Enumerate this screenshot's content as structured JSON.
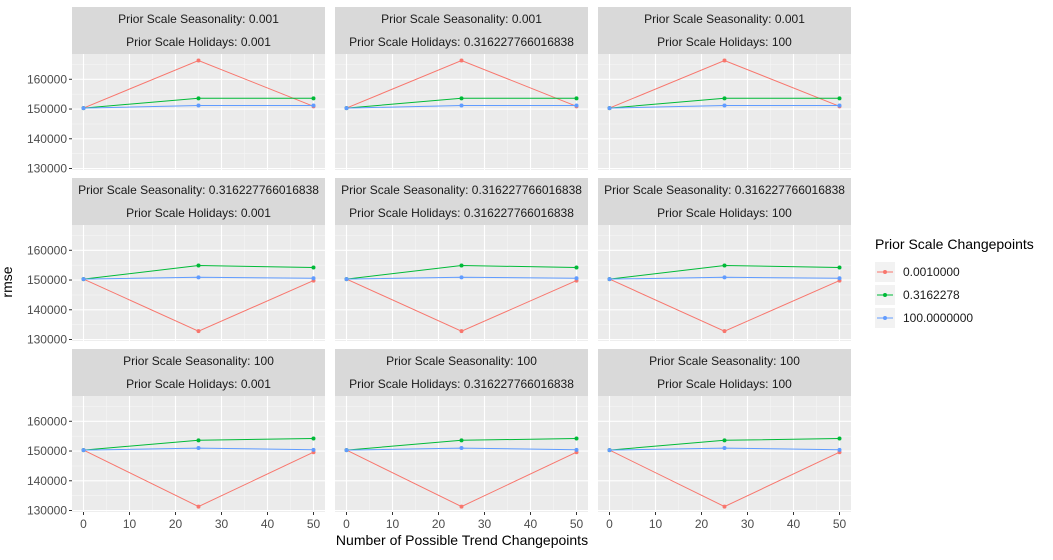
{
  "chart_data": {
    "type": "line",
    "facet_layout": "3x3 grid, rows = Prior Scale Seasonality, columns = Prior Scale Holidays",
    "xlabel": "Number of Possible Trend Changepoints",
    "ylabel": "rmse",
    "x_ticks": [
      "0",
      "10",
      "20",
      "30",
      "40",
      "50"
    ],
    "y_ticks": [
      "130000",
      "140000",
      "150000",
      "160000"
    ],
    "xlim": [
      -2.5,
      52.5
    ],
    "ylim": [
      129500,
      168500
    ],
    "grid": true,
    "legend": {
      "title": "Prior Scale Changepoints",
      "placement": "right",
      "entries": [
        {
          "label": "0.0010000",
          "color": "#F8766D"
        },
        {
          "label": "0.3162278",
          "color": "#00BA38"
        },
        {
          "label": "100.0000000",
          "color": "#619CFF"
        }
      ]
    },
    "x": [
      0,
      25,
      50
    ],
    "panels": [
      {
        "strip_top": "Prior Scale Seasonality: 0.001",
        "strip_bottom": "Prior Scale Holidays: 0.001",
        "series": [
          {
            "values": [
              150300,
              166300,
              150900
            ]
          },
          {
            "values": [
              150300,
              153600,
              153600
            ]
          },
          {
            "values": [
              150300,
              151200,
              151200
            ]
          }
        ]
      },
      {
        "strip_top": "Prior Scale Seasonality: 0.001",
        "strip_bottom": "Prior Scale Holidays: 0.316227766016838",
        "series": [
          {
            "values": [
              150300,
              166300,
              150900
            ]
          },
          {
            "values": [
              150300,
              153600,
              153600
            ]
          },
          {
            "values": [
              150300,
              151200,
              151200
            ]
          }
        ]
      },
      {
        "strip_top": "Prior Scale Seasonality: 0.001",
        "strip_bottom": "Prior Scale Holidays: 100",
        "series": [
          {
            "values": [
              150300,
              166300,
              150900
            ]
          },
          {
            "values": [
              150300,
              153600,
              153600
            ]
          },
          {
            "values": [
              150300,
              151200,
              151200
            ]
          }
        ]
      },
      {
        "strip_top": "Prior Scale Seasonality: 0.316227766016838",
        "strip_bottom": "Prior Scale Holidays: 0.001",
        "series": [
          {
            "values": [
              150300,
              132800,
              149800
            ]
          },
          {
            "values": [
              150300,
              154900,
              154200
            ]
          },
          {
            "values": [
              150300,
              150900,
              150600
            ]
          }
        ]
      },
      {
        "strip_top": "Prior Scale Seasonality: 0.316227766016838",
        "strip_bottom": "Prior Scale Holidays: 0.316227766016838",
        "series": [
          {
            "values": [
              150300,
              132800,
              149800
            ]
          },
          {
            "values": [
              150300,
              154900,
              154200
            ]
          },
          {
            "values": [
              150300,
              150900,
              150600
            ]
          }
        ]
      },
      {
        "strip_top": "Prior Scale Seasonality: 0.316227766016838",
        "strip_bottom": "Prior Scale Holidays: 100",
        "series": [
          {
            "values": [
              150300,
              132800,
              149800
            ]
          },
          {
            "values": [
              150300,
              154900,
              154200
            ]
          },
          {
            "values": [
              150300,
              150900,
              150600
            ]
          }
        ]
      },
      {
        "strip_top": "Prior Scale Seasonality: 100",
        "strip_bottom": "Prior Scale Holidays: 0.001",
        "series": [
          {
            "values": [
              150300,
              131300,
              149600
            ]
          },
          {
            "values": [
              150300,
              153600,
              154200
            ]
          },
          {
            "values": [
              150300,
              151000,
              150400
            ]
          }
        ]
      },
      {
        "strip_top": "Prior Scale Seasonality: 100",
        "strip_bottom": "Prior Scale Holidays: 0.316227766016838",
        "series": [
          {
            "values": [
              150300,
              131300,
              149600
            ]
          },
          {
            "values": [
              150300,
              153600,
              154200
            ]
          },
          {
            "values": [
              150300,
              151000,
              150400
            ]
          }
        ]
      },
      {
        "strip_top": "Prior Scale Seasonality: 100",
        "strip_bottom": "Prior Scale Holidays: 100",
        "series": [
          {
            "values": [
              150300,
              131300,
              149600
            ]
          },
          {
            "values": [
              150300,
              153600,
              154200
            ]
          },
          {
            "values": [
              150300,
              151000,
              150400
            ]
          }
        ]
      }
    ]
  }
}
